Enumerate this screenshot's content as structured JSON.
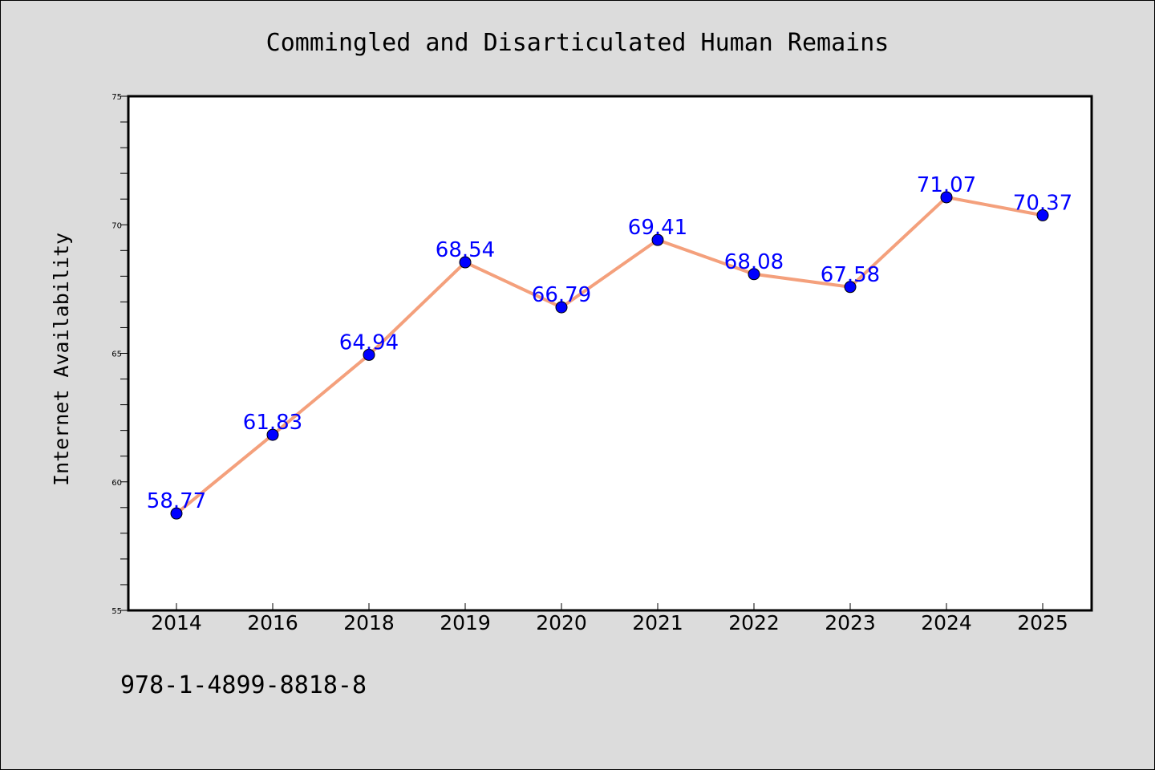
{
  "chart_data": {
    "type": "line",
    "title": "Commingled and Disarticulated Human Remains",
    "xlabel": "",
    "ylabel": "Internet Availability",
    "categories": [
      "2014",
      "2016",
      "2018",
      "2019",
      "2020",
      "2021",
      "2022",
      "2023",
      "2024",
      "2025"
    ],
    "series": [
      {
        "values": [
          58.77,
          61.83,
          64.94,
          68.54,
          66.79,
          69.41,
          68.08,
          67.58,
          71.07,
          70.37
        ],
        "labels": [
          "58.77",
          "61.83",
          "64.94",
          "68.54",
          "66.79",
          "69.41",
          "68.08",
          "67.58",
          "71.07",
          "70.37"
        ]
      }
    ],
    "ylim": [
      55,
      75
    ],
    "yticks": [
      "55",
      "60",
      "65",
      "70",
      "75"
    ],
    "grid": false,
    "legend": "none",
    "colors": {
      "line": "#f4a07c",
      "marker": "#0000ff",
      "data_label": "#0000ff",
      "plot_background": "#ffffff",
      "page_background": "#dcdcdc"
    }
  },
  "footer": {
    "isbn": "978-1-4899-8818-8"
  }
}
